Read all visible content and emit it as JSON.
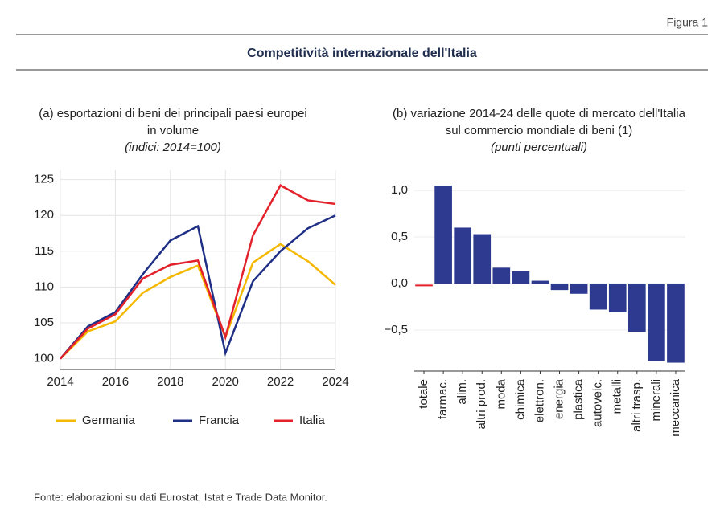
{
  "figure": {
    "label": "Figura 1",
    "title": "Competitività internazionale dell'Italia",
    "source": "Fonte: elaborazioni su dati Eurostat, Istat e Trade Data Monitor."
  },
  "chart_data": [
    {
      "type": "line",
      "title": [
        "(a) esportazioni di beni dei principali paesi europei",
        "in volume"
      ],
      "subtitle": "(indici: 2014=100)",
      "x": [
        2014,
        2015,
        2016,
        2017,
        2018,
        2019,
        2020,
        2021,
        2022,
        2023,
        2024
      ],
      "xlim": [
        2014,
        2024
      ],
      "xticks": [
        2014,
        2016,
        2018,
        2020,
        2022,
        2024
      ],
      "ylim": [
        98.5,
        126.3
      ],
      "yticks": [
        100,
        105,
        110,
        115,
        120,
        125
      ],
      "grid": true,
      "legend": "bottom",
      "series": [
        {
          "name": "Germania",
          "color": "#f5b800",
          "values": [
            100,
            103.8,
            105.2,
            109.2,
            111.4,
            113,
            103,
            113.4,
            116,
            113.6,
            110.3
          ]
        },
        {
          "name": "Francia",
          "color": "#1f2f86",
          "values": [
            100,
            104.5,
            106.5,
            111.8,
            116.5,
            118.5,
            100.8,
            110.8,
            115,
            118.2,
            120
          ]
        },
        {
          "name": "Italia",
          "color": "#e3212b",
          "values": [
            100,
            104.2,
            106.2,
            111.2,
            113.1,
            113.7,
            103,
            117.2,
            124.2,
            122.1,
            121.6
          ]
        }
      ]
    },
    {
      "type": "bar",
      "title": [
        "(b) variazione 2014-24 delle quote di mercato dell'Italia",
        "sul commercio mondiale di beni (1)"
      ],
      "subtitle": "(punti percentuali)",
      "categories": [
        "totale",
        "farmac.",
        "alim.",
        "altri prod.",
        "moda",
        "chimica",
        "elettron.",
        "energia",
        "plastica",
        "autoveic.",
        "metalli",
        "altri trasp.",
        "minerali",
        "meccanica"
      ],
      "values": [
        -0.02,
        1.05,
        0.6,
        0.53,
        0.17,
        0.13,
        0.03,
        -0.07,
        -0.11,
        -0.28,
        -0.31,
        -0.52,
        -0.83,
        -0.85
      ],
      "colors": [
        "#e3212b",
        "#2e3a8f",
        "#2e3a8f",
        "#2e3a8f",
        "#2e3a8f",
        "#2e3a8f",
        "#2e3a8f",
        "#2e3a8f",
        "#2e3a8f",
        "#2e3a8f",
        "#2e3a8f",
        "#2e3a8f",
        "#2e3a8f",
        "#2e3a8f"
      ],
      "ylim": [
        -0.94,
        1.13
      ],
      "yticks": [
        {
          "value": 1.0,
          "label": "1,0"
        },
        {
          "value": 0.5,
          "label": "0,5"
        },
        {
          "value": 0,
          "label": "0,0"
        },
        {
          "value": -0.5,
          "label": "−0,5"
        }
      ],
      "grid": true
    }
  ]
}
